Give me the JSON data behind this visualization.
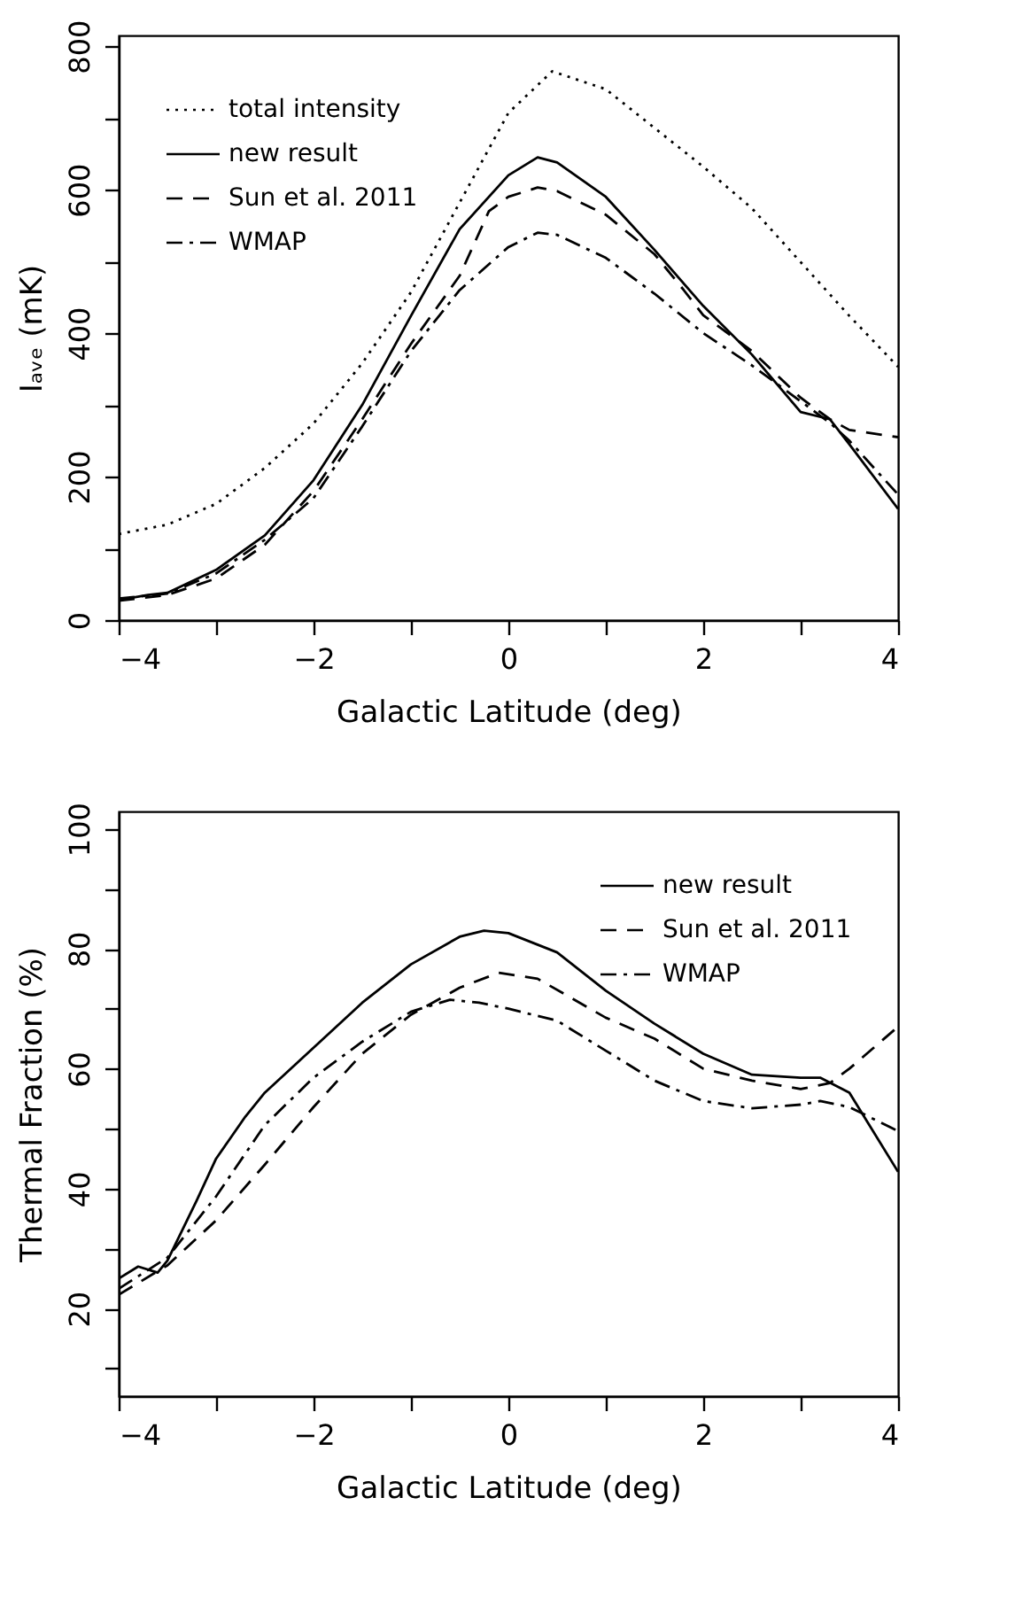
{
  "chart_data": [
    {
      "type": "line",
      "xlabel": "Galactic Latitude (deg)",
      "ylabel": "Iₐᵥₑ (mK)",
      "xlim": [
        -4,
        4
      ],
      "ylim": [
        0,
        815
      ],
      "xticks": [
        -4,
        {
          "value": -3,
          "label": null
        },
        -2,
        {
          "value": -1,
          "label": null
        },
        0,
        {
          "value": 1,
          "label": null
        },
        2,
        {
          "value": 3,
          "label": null
        },
        4
      ],
      "yticks": [
        0,
        {
          "value": 100,
          "label": null
        },
        200,
        {
          "value": 300,
          "label": null
        },
        400,
        {
          "value": 500,
          "label": null
        },
        600,
        {
          "value": 700,
          "label": null
        },
        800
      ],
      "grid": false,
      "legend": "top left",
      "marker": "none",
      "series": [
        {
          "name": "total intensity",
          "color": "#000000",
          "line_style": "dotted",
          "x": [
            -4,
            -3.5,
            -3,
            -2.5,
            -2,
            -1.5,
            -1,
            -0.5,
            0,
            0.45,
            1,
            1.5,
            2,
            2.5,
            3,
            3.5,
            4
          ],
          "values": [
            120,
            133,
            162,
            212,
            274,
            358,
            457,
            582,
            707,
            765,
            740,
            686,
            632,
            574,
            499,
            424,
            353
          ]
        },
        {
          "name": "new result",
          "color": "#000000",
          "line_style": "solid",
          "x": [
            -4,
            -3.7,
            -3.5,
            -3,
            -2.5,
            -2,
            -1.5,
            -1,
            -0.5,
            0,
            0.3,
            0.5,
            1,
            1.5,
            2,
            2.5,
            3,
            3.3,
            3.5,
            4
          ],
          "values": [
            28,
            35,
            38,
            70,
            118,
            195,
            300,
            424,
            545,
            620,
            645,
            638,
            590,
            516,
            438,
            370,
            290,
            280,
            245,
            155
          ]
        },
        {
          "name": "Sun et al. 2011",
          "color": "#000000",
          "line_style": "dashed",
          "x": [
            -4,
            -3.5,
            -3,
            -2.5,
            -2,
            -1.5,
            -1,
            -0.5,
            -0.2,
            0,
            0.3,
            0.5,
            1,
            1.5,
            1.8,
            2,
            2.5,
            3,
            3.3,
            3.5,
            4
          ],
          "values": [
            27,
            35,
            58,
            105,
            180,
            280,
            385,
            480,
            570,
            590,
            603,
            598,
            565,
            510,
            460,
            425,
            375,
            310,
            280,
            265,
            255
          ]
        },
        {
          "name": "WMAP",
          "color": "#000000",
          "line_style": "dashdot",
          "x": [
            -4,
            -3.5,
            -3,
            -2.5,
            -2,
            -1.5,
            -1,
            -0.5,
            0,
            0.3,
            0.5,
            1,
            1.5,
            2,
            2.5,
            3,
            3.3,
            3.5,
            4
          ],
          "values": [
            30,
            37,
            65,
            112,
            170,
            270,
            375,
            460,
            520,
            540,
            537,
            505,
            455,
            400,
            355,
            305,
            275,
            250,
            175
          ]
        }
      ]
    },
    {
      "type": "line",
      "xlabel": "Galactic Latitude (deg)",
      "ylabel": "Thermal Fraction (%)",
      "xlim": [
        -4,
        4
      ],
      "ylim": [
        5.4,
        102.9
      ],
      "xticks": [
        -4,
        {
          "value": -3,
          "label": null
        },
        -2,
        {
          "value": -1,
          "label": null
        },
        0,
        {
          "value": 1,
          "label": null
        },
        2,
        {
          "value": 3,
          "label": null
        },
        4
      ],
      "yticks": [
        {
          "value": 10,
          "label": null
        },
        20,
        {
          "value": 30,
          "label": null
        },
        40,
        {
          "value": 50,
          "label": null
        },
        60,
        {
          "value": 70,
          "label": null
        },
        80,
        {
          "value": 90,
          "label": null
        },
        100
      ],
      "grid": false,
      "legend": "top right",
      "marker": "none",
      "series": [
        {
          "name": "new result",
          "color": "#000000",
          "line_style": "solid",
          "x": [
            -4,
            -3.8,
            -3.6,
            -3.5,
            -3.2,
            -3,
            -2.7,
            -2.5,
            -2,
            -1.5,
            -1,
            -0.5,
            -0.25,
            0,
            0.5,
            1,
            1.5,
            2,
            2.5,
            3,
            3.2,
            3.5,
            4
          ],
          "values": [
            25,
            27,
            26,
            28,
            38,
            45,
            52,
            56,
            63.5,
            71,
            77.4,
            82,
            83,
            82.6,
            79.4,
            73,
            67.5,
            62.5,
            59,
            58.5,
            58.5,
            56,
            42.8
          ]
        },
        {
          "name": "Sun et al. 2011",
          "color": "#000000",
          "line_style": "dashed",
          "x": [
            -4,
            -3.5,
            -3,
            -2.5,
            -2,
            -1.5,
            -1,
            -0.5,
            -0.1,
            0.3,
            1,
            1.5,
            2,
            2.5,
            3,
            3.3,
            3.5,
            4
          ],
          "values": [
            22.3,
            27.2,
            34.7,
            44,
            53.6,
            62.5,
            69,
            73.5,
            76,
            75,
            68.5,
            65,
            60,
            58,
            56.6,
            57.6,
            60,
            67
          ]
        },
        {
          "name": "WMAP",
          "color": "#000000",
          "line_style": "dashdot",
          "x": [
            -4,
            -3.5,
            -3,
            -2.5,
            -2,
            -1.5,
            -1,
            -0.6,
            -0.3,
            0,
            0.5,
            1,
            1.5,
            2,
            2.5,
            3,
            3.2,
            3.5,
            4
          ],
          "values": [
            23.3,
            28.5,
            38.7,
            50.6,
            58.5,
            64.5,
            69.5,
            71.5,
            71,
            70,
            68,
            63,
            58,
            54.6,
            53.4,
            54,
            54.6,
            53.6,
            49.6
          ]
        }
      ]
    }
  ]
}
